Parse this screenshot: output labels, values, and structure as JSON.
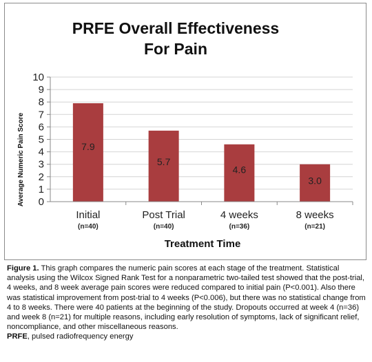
{
  "chart_data": {
    "type": "bar",
    "title_lines": [
      "PRFE Overall Effectiveness",
      "For Pain"
    ],
    "xlabel": "Treatment Time",
    "ylabel": "Average Numeric Pain Score",
    "ylim": [
      0,
      10
    ],
    "yticks": [
      "0",
      "1",
      "2",
      "3",
      "4",
      "5",
      "6",
      "7",
      "8",
      "9",
      "10"
    ],
    "categories": [
      "Initial",
      "Post Trial",
      "4 weeks",
      "8 weeks"
    ],
    "subcategories": [
      "(n=40)",
      "(n=40)",
      "(n=36)",
      "(n=21)"
    ],
    "values": [
      7.9,
      5.7,
      4.6,
      3.0
    ],
    "value_labels": [
      "7.9",
      "5.7",
      "4.6",
      "3.0"
    ],
    "bar_color": "#a93d3f",
    "grid": true
  },
  "caption": {
    "label": "Figure 1.",
    "text": " This graph compares the numeric pain scores at each stage of the treatment.  Statistical analysis using the Wilcox Signed Rank Test for a nonparametric two-tailed test showed that the post-trial, 4 weeks, and 8 week average pain scores were reduced compared to initial pain (P<0.001). Also there was statistical improvement from post-trial to 4 weeks (P<0.006), but there was no statistical change from 4 to 8 weeks. There were 40 patients at the beginning of the study. Dropouts occurred at week 4 (n=36) and week 8 (n=21) for multiple reasons, including early resolution of symptoms, lack of significant relief, noncompliance, and other miscellaneous reasons.",
    "abbrev_label": "PRFE",
    "abbrev_text": ", pulsed radiofrequency energy"
  }
}
